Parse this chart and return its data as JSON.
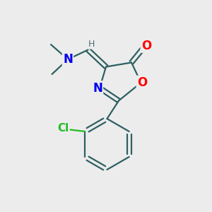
{
  "background_color": "#ececec",
  "atom_colors": {
    "N": "#0000ee",
    "O": "#ff0000",
    "Cl": "#22bb22",
    "C": "#1a1a1a",
    "H": "#507070"
  },
  "bond_color": "#2d6060",
  "bond_width": 1.6,
  "font_size_atom": 11,
  "font_size_small": 9
}
